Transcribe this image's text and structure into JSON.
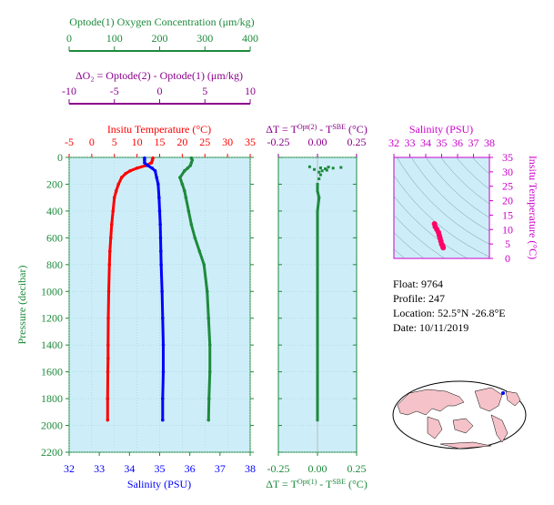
{
  "colors": {
    "temperature": "#ff0000",
    "salinity": "#0000ff",
    "oxygen": "#1e8a3c",
    "delta_o2": "#8b008b",
    "ts_axis": "#cc00cc",
    "panel_bg": "#cdeef8",
    "land": "#f4c2c8",
    "ocean": "#ffffff",
    "profile_marker": "#ff0066"
  },
  "info": {
    "float": "Float:  9764",
    "profile": "Profile:  247",
    "location": "Location:  52.5°N  -26.8°E",
    "date": "Date:  10/11/2019"
  },
  "chart_data": [
    {
      "type": "line",
      "panel": "main-profile",
      "ylabel": "Pressure (decibar)",
      "yaxis": {
        "range": [
          0,
          2200
        ],
        "inverted": true,
        "ticks": [
          "0",
          "200",
          "400",
          "600",
          "800",
          "1000",
          "1200",
          "1400",
          "1600",
          "1800",
          "2000",
          "2200"
        ]
      },
      "axes_top": [
        {
          "label": "Optode(1) Oxygen Concentration (μm/kg)",
          "range": [
            0,
            400
          ],
          "ticks": [
            "0",
            "100",
            "200",
            "300",
            "400"
          ],
          "color": "#1e8a3c"
        },
        {
          "label": "ΔO₂ = Optode(2) - Optode(1)    (μm/kg)",
          "range": [
            -10,
            10
          ],
          "ticks": [
            "-10",
            "-5",
            "0",
            "5",
            "10"
          ],
          "color": "#8b008b"
        },
        {
          "label": "Insitu Temperature (°C)",
          "range": [
            -5,
            35
          ],
          "ticks": [
            "-5",
            "0",
            "5",
            "10",
            "15",
            "20",
            "25",
            "30",
            "35"
          ],
          "color": "#ff0000"
        }
      ],
      "axis_bottom": {
        "label": "Salinity (PSU)",
        "range": [
          32,
          38
        ],
        "ticks": [
          "32",
          "33",
          "34",
          "35",
          "36",
          "37",
          "38"
        ],
        "color": "#0000ff"
      },
      "series": [
        {
          "key": "temperature",
          "axis": "temperature",
          "pressure": [
            5,
            20,
            40,
            60,
            80,
            100,
            120,
            150,
            200,
            250,
            300,
            400,
            500,
            600,
            700,
            800,
            1000,
            1200,
            1400,
            1500,
            1600,
            1800,
            1960
          ],
          "values": [
            13.5,
            13.4,
            13.2,
            12.0,
            10.0,
            8.5,
            7.5,
            6.6,
            5.9,
            5.4,
            5.0,
            4.7,
            4.4,
            4.2,
            4.0,
            3.9,
            3.75,
            3.65,
            3.6,
            3.6,
            3.55,
            3.5,
            3.5
          ]
        },
        {
          "key": "salinity",
          "axis": "salinity",
          "pressure": [
            5,
            20,
            40,
            60,
            80,
            100,
            150,
            200,
            300,
            400,
            500,
            600,
            700,
            800,
            1000,
            1200,
            1400,
            1600,
            1800,
            1960
          ],
          "values": [
            34.5,
            34.5,
            34.5,
            34.6,
            34.75,
            34.85,
            34.9,
            34.95,
            34.98,
            35.0,
            35.02,
            35.03,
            35.04,
            35.05,
            35.08,
            35.1,
            35.12,
            35.12,
            35.1,
            35.1
          ]
        },
        {
          "key": "oxygen",
          "axis": "oxygen",
          "pressure": [
            5,
            20,
            40,
            60,
            80,
            100,
            150,
            200,
            250,
            300,
            400,
            500,
            600,
            700,
            800,
            1000,
            1200,
            1400,
            1600,
            1800,
            1960
          ],
          "values": [
            270,
            272,
            270,
            268,
            262,
            255,
            245,
            250,
            255,
            258,
            264,
            270,
            278,
            288,
            298,
            305,
            308,
            311,
            311,
            309,
            308
          ]
        }
      ]
    },
    {
      "type": "scatter",
      "panel": "delta-t",
      "title_top": "ΔT = T^Opt(2) - T^SBE (°C)",
      "title_bottom": "ΔT = T^Opt(1) - T^SBE (°C)",
      "xaxis": {
        "range": [
          -0.25,
          0.25
        ],
        "ticks": [
          "-0.25",
          "0.00",
          "0.25"
        ]
      },
      "yaxis": {
        "range": [
          0,
          2200
        ],
        "inverted": true
      },
      "series": [
        {
          "key": "delta_t",
          "color": "#1e8a3c",
          "pressure": [
            70,
            72,
            75,
            78,
            80,
            85,
            90,
            95,
            100,
            110,
            130,
            160,
            200,
            250,
            300,
            400,
            500,
            600,
            800,
            1000,
            1200,
            1400,
            1600,
            1800,
            1960
          ],
          "values": [
            -0.05,
            0.07,
            0.15,
            0.02,
            0.1,
            0.05,
            -0.02,
            0.06,
            0.03,
            0.01,
            0.02,
            0.01,
            0.0,
            0.0,
            0.01,
            0.0,
            0.0,
            0.0,
            0.0,
            0.0,
            0.0,
            0.0,
            0.0,
            0.0,
            0.0
          ]
        }
      ]
    },
    {
      "type": "scatter",
      "panel": "ts-diagram",
      "xaxis": {
        "label": "Salinity (PSU)",
        "range": [
          32,
          38
        ],
        "ticks": [
          "32",
          "33",
          "34",
          "35",
          "36",
          "37",
          "38"
        ]
      },
      "yaxis": {
        "label": "Insitu Temperature (°C)",
        "range": [
          0,
          35
        ],
        "ticks": [
          "0",
          "5",
          "10",
          "15",
          "20",
          "25",
          "30",
          "35"
        ]
      },
      "series": [
        {
          "key": "ts_points",
          "color": "#ff0066",
          "salinity": [
            34.55,
            34.6,
            34.7,
            34.8,
            34.85,
            34.9,
            34.95,
            35.0,
            35.05,
            35.08,
            35.1
          ],
          "temperature": [
            12.0,
            11.0,
            10.0,
            9.0,
            8.0,
            7.0,
            6.0,
            5.0,
            4.5,
            4.0,
            3.7
          ]
        }
      ]
    }
  ]
}
